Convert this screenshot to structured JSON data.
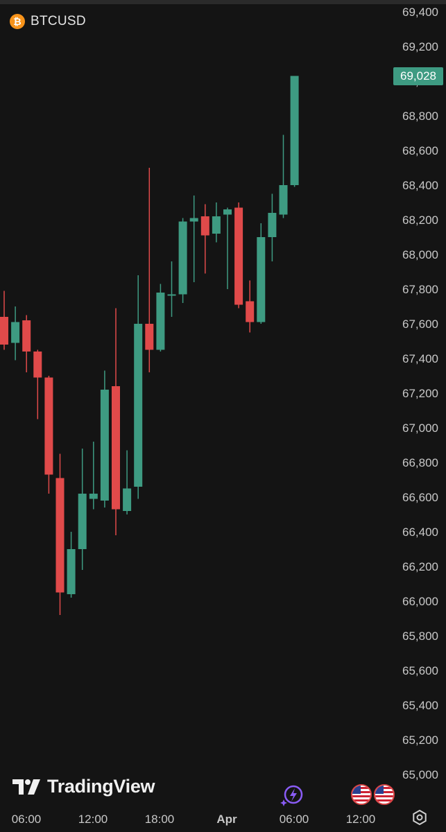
{
  "symbol": {
    "name": "BTCUSD",
    "icon": "bitcoin-icon"
  },
  "colors": {
    "background": "#141414",
    "up": "#3e9b82",
    "down": "#e04a4a",
    "text": "#c8c8c8"
  },
  "last_price": "69,028",
  "branding": {
    "logo_text": "TradingView"
  },
  "icons": [
    "bitcoin-icon",
    "lightning-icon",
    "us-flag-icon",
    "settings-icon"
  ],
  "chart_data": {
    "type": "candlestick",
    "title": "BTCUSD",
    "y_ticks": [
      "69,400",
      "69,200",
      "69,000",
      "68,800",
      "68,600",
      "68,400",
      "68,200",
      "68,000",
      "67,800",
      "67,600",
      "67,400",
      "67,200",
      "67,000",
      "66,800",
      "66,600",
      "66,400",
      "66,200",
      "66,000",
      "65,800",
      "65,600",
      "65,400",
      "65,200",
      "65,000"
    ],
    "x_ticks": [
      "06:00",
      "12:00",
      "18:00",
      "Apr",
      "06:00",
      "12:00"
    ],
    "ylim": [
      64850,
      69450
    ],
    "candles": [
      {
        "o": 67640,
        "h": 67790,
        "l": 67450,
        "c": 67480
      },
      {
        "o": 67490,
        "h": 67700,
        "l": 67390,
        "c": 67610
      },
      {
        "o": 67620,
        "h": 67650,
        "l": 67320,
        "c": 67440
      },
      {
        "o": 67440,
        "h": 67450,
        "l": 67050,
        "c": 67290
      },
      {
        "o": 67290,
        "h": 67300,
        "l": 66620,
        "c": 66730
      },
      {
        "o": 66710,
        "h": 66850,
        "l": 65920,
        "c": 66050
      },
      {
        "o": 66040,
        "h": 66400,
        "l": 66020,
        "c": 66300
      },
      {
        "o": 66300,
        "h": 66880,
        "l": 66180,
        "c": 66620
      },
      {
        "o": 66590,
        "h": 66920,
        "l": 66530,
        "c": 66620
      },
      {
        "o": 66580,
        "h": 67330,
        "l": 66540,
        "c": 67220
      },
      {
        "o": 67240,
        "h": 67690,
        "l": 66380,
        "c": 66530
      },
      {
        "o": 66520,
        "h": 66870,
        "l": 66500,
        "c": 66650
      },
      {
        "o": 66660,
        "h": 67880,
        "l": 66590,
        "c": 67600
      },
      {
        "o": 67600,
        "h": 68500,
        "l": 67320,
        "c": 67450
      },
      {
        "o": 67450,
        "h": 67830,
        "l": 67440,
        "c": 67780
      },
      {
        "o": 67770,
        "h": 67960,
        "l": 67640,
        "c": 67770
      },
      {
        "o": 67770,
        "h": 68210,
        "l": 67720,
        "c": 68190
      },
      {
        "o": 68190,
        "h": 68340,
        "l": 67840,
        "c": 68210
      },
      {
        "o": 68220,
        "h": 68290,
        "l": 67890,
        "c": 68110
      },
      {
        "o": 68120,
        "h": 68300,
        "l": 68070,
        "c": 68220
      },
      {
        "o": 68230,
        "h": 68270,
        "l": 67800,
        "c": 68260
      },
      {
        "o": 68270,
        "h": 68300,
        "l": 67690,
        "c": 67710
      },
      {
        "o": 67730,
        "h": 67850,
        "l": 67550,
        "c": 67610
      },
      {
        "o": 67610,
        "h": 68180,
        "l": 67600,
        "c": 68100
      },
      {
        "o": 68100,
        "h": 68350,
        "l": 67960,
        "c": 68240
      },
      {
        "o": 68230,
        "h": 68690,
        "l": 68210,
        "c": 68400
      },
      {
        "o": 68400,
        "h": 69030,
        "l": 68390,
        "c": 69030
      }
    ]
  }
}
